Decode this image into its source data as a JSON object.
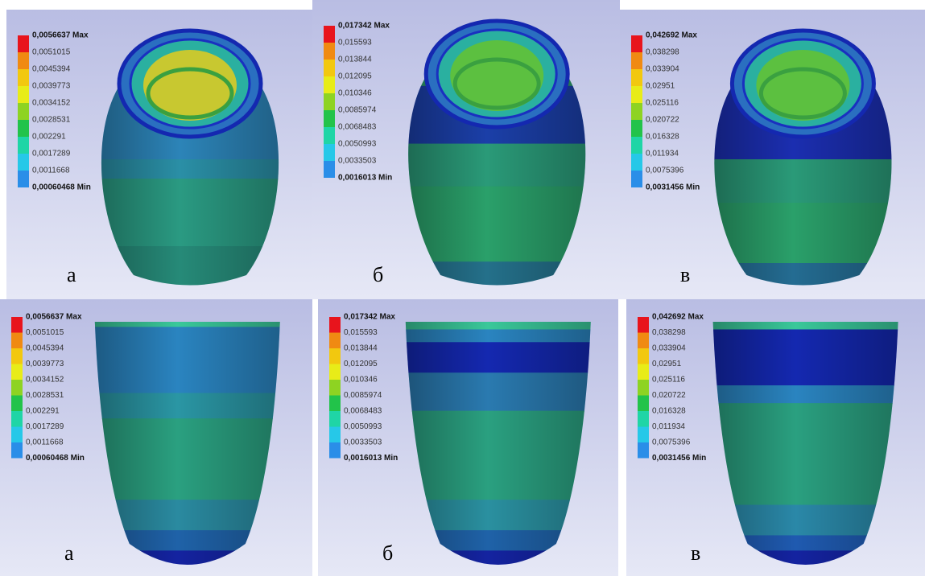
{
  "panels": [
    {
      "letter": "а",
      "legend": {
        "max": "0,0056637 Max",
        "levels": [
          "0,0051015",
          "0,0045394",
          "0,0039773",
          "0,0034152",
          "0,0028531",
          "0,002291",
          "0,0017289",
          "0,0011668"
        ],
        "min": "0,00060468 Min"
      }
    },
    {
      "letter": "б",
      "legend": {
        "max": "0,017342 Max",
        "levels": [
          "0,015593",
          "0,013844",
          "0,012095",
          "0,010346",
          "0,0085974",
          "0,0068483",
          "0,0050993",
          "0,0033503"
        ],
        "min": "0,0016013 Min"
      }
    },
    {
      "letter": "в",
      "legend": {
        "max": "0,042692 Max",
        "levels": [
          "0,038298",
          "0,033904",
          "0,02951",
          "0,025116",
          "0,020722",
          "0,016328",
          "0,011934",
          "0,0075396"
        ],
        "min": "0,0031456 Min"
      }
    },
    {
      "letter": "а",
      "legend": {
        "max": "0,0056637 Max",
        "levels": [
          "0,0051015",
          "0,0045394",
          "0,0039773",
          "0,0034152",
          "0,0028531",
          "0,002291",
          "0,0017289",
          "0,0011668"
        ],
        "min": "0,00060468 Min"
      }
    },
    {
      "letter": "б",
      "legend": {
        "max": "0,017342 Max",
        "levels": [
          "0,015593",
          "0,013844",
          "0,012095",
          "0,010346",
          "0,0085974",
          "0,0068483",
          "0,0050993",
          "0,0033503"
        ],
        "min": "0,0016013 Min"
      }
    },
    {
      "letter": "в",
      "legend": {
        "max": "0,042692 Max",
        "levels": [
          "0,038298",
          "0,033904",
          "0,02951",
          "0,025116",
          "0,020722",
          "0,016328",
          "0,011934",
          "0,0075396"
        ],
        "min": "0,0031456 Min"
      }
    }
  ]
}
